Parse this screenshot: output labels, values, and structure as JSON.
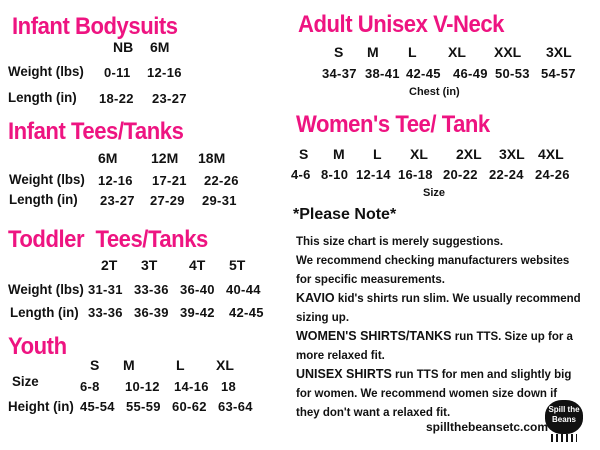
{
  "infant_bodysuits": {
    "title": "Infant Bodysuits",
    "sizes": [
      "NB",
      "6M"
    ],
    "rows": [
      {
        "label": "Weight (lbs)",
        "values": [
          "0-11",
          "12-16"
        ]
      },
      {
        "label": "Length (in)",
        "values": [
          "18-22",
          "23-27"
        ]
      }
    ]
  },
  "infant_tees": {
    "title": "Infant Tees/Tanks",
    "sizes": [
      "6M",
      "12M",
      "18M"
    ],
    "rows": [
      {
        "label": "Weight (lbs)",
        "values": [
          "12-16",
          "17-21",
          "22-26"
        ]
      },
      {
        "label": "Length (in)",
        "values": [
          "23-27",
          "27-29",
          "29-31"
        ]
      }
    ]
  },
  "toddler_tees": {
    "title": "Toddler  Tees/Tanks",
    "sizes": [
      "2T",
      "3T",
      "4T",
      "5T"
    ],
    "rows": [
      {
        "label": "Weight (lbs)",
        "values": [
          "31-31",
          "33-36",
          "36-40",
          "40-44"
        ]
      },
      {
        "label": "Length (in)",
        "values": [
          "33-36",
          "36-39",
          "39-42",
          "42-45"
        ]
      }
    ]
  },
  "youth": {
    "title": "Youth",
    "sizes": [
      "S",
      "M",
      "L",
      "XL"
    ],
    "rows": [
      {
        "label": "Size",
        "values": [
          "6-8",
          "10-12",
          "14-16",
          "18"
        ]
      },
      {
        "label": "Height (in)",
        "values": [
          "45-54",
          "55-59",
          "60-62",
          "63-64"
        ]
      }
    ]
  },
  "adult_unisex": {
    "title": "Adult Unisex V-Neck",
    "sizes": [
      "S",
      "M",
      "L",
      "XL",
      "XXL",
      "3XL"
    ],
    "values": [
      "34-37",
      "38-41",
      "42-45",
      "46-49",
      "50-53",
      "54-57"
    ],
    "caption": "Chest (in)"
  },
  "womens_tee": {
    "title": "Women's Tee/ Tank",
    "sizes": [
      "S",
      "M",
      "L",
      "XL",
      "2XL",
      "3XL",
      "4XL"
    ],
    "values": [
      "4-6",
      "8-10",
      "12-14",
      "16-18",
      "20-22",
      "22-24",
      "24-26"
    ],
    "caption": "Size"
  },
  "notes": {
    "title": "*Please Note*",
    "lines": [
      {
        "bold": "",
        "text": "This size chart is merely suggestions."
      },
      {
        "bold": "",
        "text": "We recommend checking manufacturers websites"
      },
      {
        "bold": "",
        "text": "for specific measurements."
      },
      {
        "bold": "KAVIO",
        "text": " kid's shirts run slim. We usually recommend"
      },
      {
        "bold": "",
        "text": "sizing up."
      },
      {
        "bold": "WOMEN'S SHIRTS/TANKS",
        "text": " run TTS. Size up for a"
      },
      {
        "bold": "",
        "text": "more relaxed fit."
      },
      {
        "bold": "UNISEX SHIRTS",
        "text": " run TTS for men and slightly big"
      },
      {
        "bold": "",
        "text": "for women. We recommend women size down if"
      },
      {
        "bold": "",
        "text": "they don't want a relaxed fit."
      }
    ]
  },
  "footer": {
    "website": "spillthebeansetc.com",
    "logo_text": "Spill the Beans"
  },
  "colors": {
    "heading": "#ee1481",
    "text": "#111111"
  }
}
